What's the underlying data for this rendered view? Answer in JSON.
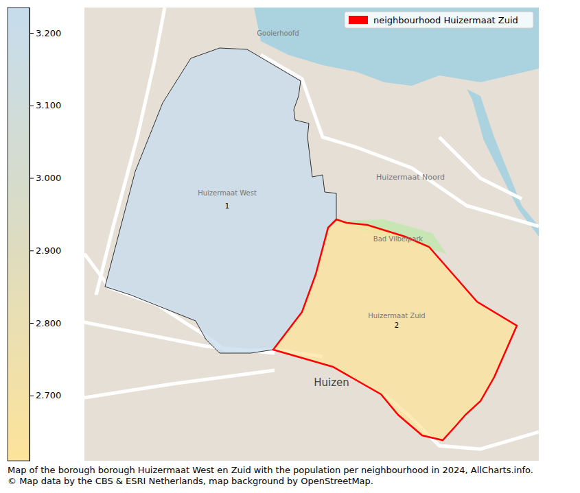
{
  "chart_data": {
    "type": "choropleth",
    "title": "Map of the borough borough Huizermaat West en Zuid with the population per neighbourhood in 2024, AllCharts.info.",
    "subtitle": "© Map data by the CBS & ESRI Netherlands, map background by OpenStreetMap.",
    "regions": [
      {
        "name": "1",
        "value": 3230
      },
      {
        "name": "2",
        "value": 2620
      }
    ],
    "legend": "upper right",
    "legend_entry": {
      "label": "neighbourhood Huizermaat Zuid",
      "color": "#ff0000"
    },
    "colorbar": {
      "range": [
        2610,
        3235
      ],
      "ticks": [
        {
          "value": 2700,
          "label": "2.700"
        },
        {
          "value": 2800,
          "label": "2.800"
        },
        {
          "value": 2900,
          "label": "2.900"
        },
        {
          "value": 3000,
          "label": "3.000"
        },
        {
          "value": 3100,
          "label": "3.100"
        },
        {
          "value": 3200,
          "label": "3.200"
        }
      ]
    },
    "map_labels": [
      "Huizermaat West",
      "Huizermaat Zuid",
      "Huizermaat Noord",
      "Huizen",
      "Gooierhoofd",
      "Bad Vilbelpark"
    ]
  }
}
